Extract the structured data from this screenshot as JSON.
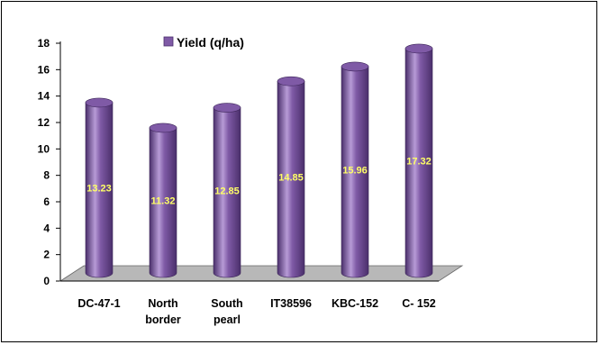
{
  "chart_data": {
    "type": "bar",
    "title": "",
    "xlabel": "",
    "ylabel": "",
    "categories": [
      [
        "DC-47-1"
      ],
      [
        "North",
        "border"
      ],
      [
        "South",
        "pearl"
      ],
      [
        "IT38596"
      ],
      [
        "KBC-152"
      ],
      [
        "C- 152"
      ]
    ],
    "series": [
      {
        "name": "Yield (q/ha)",
        "values": [
          13.23,
          11.32,
          12.85,
          14.85,
          15.96,
          17.32
        ]
      }
    ],
    "data_labels": [
      "13.23",
      "11.32",
      "12.85",
      "14.85",
      "15.96",
      "17.32"
    ],
    "ylim": [
      0,
      18
    ],
    "yticks": [
      0,
      2,
      4,
      6,
      8,
      10,
      12,
      14,
      16,
      18
    ],
    "grid": false,
    "legend_position": "top",
    "style": "3d-cylinder",
    "colors": {
      "bar": "#7f5aa6",
      "bar_dark": "#4a2f6b",
      "bar_light": "#b79bd6",
      "floor": "#b8b8b8",
      "data_label": "#ffff66"
    }
  }
}
